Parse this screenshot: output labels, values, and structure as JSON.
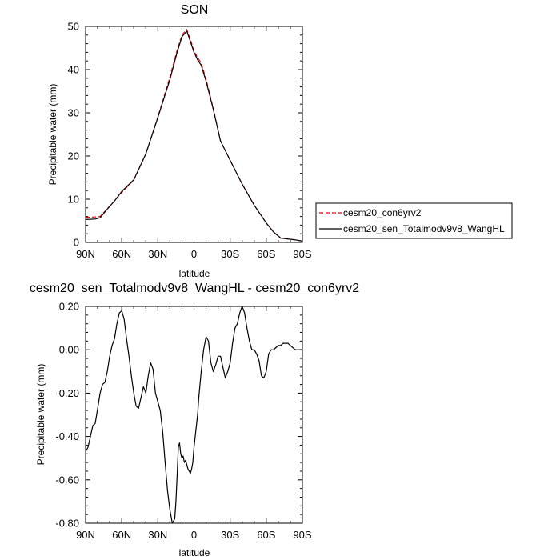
{
  "chart_data": [
    {
      "type": "line",
      "title": "SON",
      "xlabel": "latitude",
      "ylabel": "Precipitable water (mm)",
      "xlim": [
        90,
        -90
      ],
      "ylim": [
        0,
        50
      ],
      "xticks": [
        {
          "v": 90,
          "label": "90N"
        },
        {
          "v": 60,
          "label": "60N"
        },
        {
          "v": 30,
          "label": "30N"
        },
        {
          "v": 0,
          "label": "0"
        },
        {
          "v": -30,
          "label": "30S"
        },
        {
          "v": -60,
          "label": "60S"
        },
        {
          "v": -90,
          "label": "90S"
        }
      ],
      "yticks": [
        {
          "v": 0,
          "label": "0"
        },
        {
          "v": 10,
          "label": "10"
        },
        {
          "v": 20,
          "label": "20"
        },
        {
          "v": 30,
          "label": "30"
        },
        {
          "v": 40,
          "label": "40"
        },
        {
          "v": 50,
          "label": "50"
        }
      ],
      "legend_position": "right",
      "series": [
        {
          "name": "cesm20_con6yrv2",
          "color": "#ff0000",
          "dash": "dashed",
          "x": [
            90,
            82,
            78,
            72,
            66,
            60,
            50,
            40,
            30,
            20,
            14,
            10,
            6,
            3,
            0,
            -3,
            -6,
            -10,
            -16,
            -22,
            -30,
            -40,
            -50,
            -60,
            -66,
            -72,
            -78,
            -84,
            -90
          ],
          "y": [
            5.8,
            5.9,
            6.0,
            7.8,
            9.6,
            11.6,
            14.4,
            20.5,
            29.0,
            38.3,
            44.5,
            48.0,
            49.3,
            47.0,
            44.3,
            42.8,
            41.5,
            37.8,
            31.0,
            23.5,
            19.0,
            13.5,
            8.6,
            4.5,
            2.4,
            1.0,
            0.8,
            0.6,
            0.3
          ]
        },
        {
          "name": "cesm20_sen_Totalmodv9v8_WangHL",
          "color": "#000000",
          "dash": "solid",
          "x": [
            90,
            82,
            78,
            72,
            66,
            60,
            50,
            40,
            30,
            20,
            14,
            10,
            6,
            3,
            0,
            -3,
            -6,
            -10,
            -16,
            -22,
            -30,
            -40,
            -50,
            -60,
            -66,
            -72,
            -78,
            -84,
            -90
          ],
          "y": [
            5.3,
            5.4,
            5.7,
            7.7,
            9.6,
            11.8,
            14.5,
            20.5,
            28.9,
            37.7,
            44.0,
            47.6,
            48.9,
            46.5,
            44.0,
            42.3,
            41.0,
            37.3,
            30.8,
            23.5,
            19.0,
            13.5,
            8.6,
            4.5,
            2.4,
            1.0,
            0.8,
            0.6,
            0.3
          ]
        }
      ]
    },
    {
      "type": "line",
      "title": "cesm20_sen_Totalmodv9v8_WangHL - cesm20_con6yrv2",
      "xlabel": "latitude",
      "ylabel": "Precipitable water (mm)",
      "xlim": [
        90,
        -90
      ],
      "ylim": [
        -0.8,
        0.2
      ],
      "xticks": [
        {
          "v": 90,
          "label": "90N"
        },
        {
          "v": 60,
          "label": "60N"
        },
        {
          "v": 30,
          "label": "30N"
        },
        {
          "v": 0,
          "label": "0"
        },
        {
          "v": -30,
          "label": "30S"
        },
        {
          "v": -60,
          "label": "60S"
        },
        {
          "v": -90,
          "label": "90S"
        }
      ],
      "yticks": [
        {
          "v": 0.2,
          "label": "0.20"
        },
        {
          "v": 0.0,
          "label": "0.00"
        },
        {
          "v": -0.2,
          "label": "-0.20"
        },
        {
          "v": -0.4,
          "label": "-0.40"
        },
        {
          "v": -0.6,
          "label": "-0.60"
        },
        {
          "v": -0.8,
          "label": "-0.80"
        }
      ],
      "series": [
        {
          "name": "",
          "color": "#000000",
          "x": [
            90,
            88,
            86,
            84,
            82,
            80,
            78,
            76,
            74,
            72,
            70,
            68,
            66,
            64,
            62,
            60,
            58,
            56,
            54,
            52,
            50,
            48,
            46,
            44,
            42,
            40,
            38,
            36,
            34,
            32,
            30,
            28,
            26,
            24,
            22,
            20,
            18,
            16,
            15,
            14,
            13,
            12,
            11,
            10,
            9,
            8,
            7,
            6,
            5,
            4,
            3,
            2,
            1,
            0,
            -1,
            -2,
            -3,
            -4,
            -6,
            -8,
            -10,
            -12,
            -14,
            -16,
            -18,
            -20,
            -22,
            -24,
            -26,
            -28,
            -30,
            -32,
            -34,
            -36,
            -38,
            -40,
            -42,
            -44,
            -46,
            -48,
            -50,
            -52,
            -54,
            -56,
            -58,
            -60,
            -62,
            -64,
            -66,
            -68,
            -70,
            -72,
            -74,
            -76,
            -78,
            -80,
            -82,
            -84,
            -86,
            -88,
            -90
          ],
          "y": [
            -0.47,
            -0.45,
            -0.4,
            -0.35,
            -0.34,
            -0.27,
            -0.2,
            -0.16,
            -0.15,
            -0.1,
            -0.03,
            0.02,
            0.05,
            0.12,
            0.17,
            0.18,
            0.14,
            0.05,
            -0.03,
            -0.12,
            -0.2,
            -0.26,
            -0.27,
            -0.22,
            -0.17,
            -0.2,
            -0.12,
            -0.06,
            -0.09,
            -0.2,
            -0.24,
            -0.28,
            -0.38,
            -0.52,
            -0.65,
            -0.74,
            -0.8,
            -0.78,
            -0.7,
            -0.58,
            -0.45,
            -0.43,
            -0.48,
            -0.5,
            -0.49,
            -0.52,
            -0.51,
            -0.53,
            -0.55,
            -0.56,
            -0.57,
            -0.55,
            -0.52,
            -0.45,
            -0.4,
            -0.35,
            -0.3,
            -0.22,
            -0.1,
            0.0,
            0.06,
            0.04,
            -0.06,
            -0.1,
            -0.07,
            -0.03,
            -0.03,
            -0.08,
            -0.13,
            -0.1,
            -0.06,
            0.03,
            0.1,
            0.12,
            0.17,
            0.2,
            0.17,
            0.1,
            0.04,
            0.0,
            0.0,
            -0.02,
            -0.05,
            -0.12,
            -0.13,
            -0.1,
            -0.02,
            0.0,
            0.0,
            0.01,
            0.02,
            0.02,
            0.03,
            0.03,
            0.03,
            0.02,
            0.01,
            0.0,
            0.0,
            0.0,
            0.0
          ]
        }
      ]
    }
  ]
}
